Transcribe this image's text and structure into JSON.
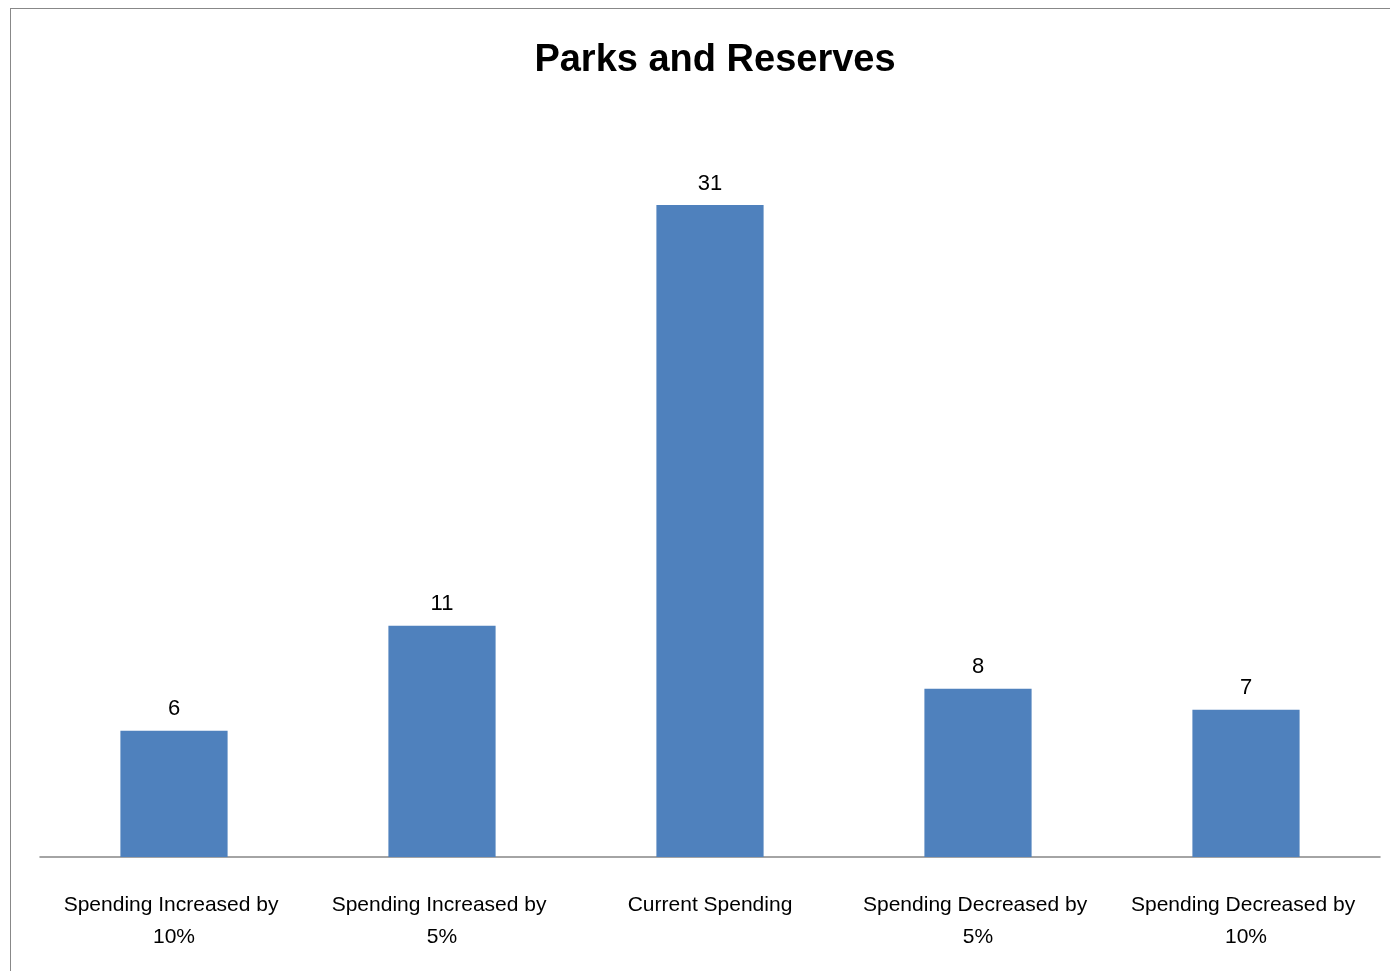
{
  "chart_data": {
    "type": "bar",
    "title": "Parks and Reserves",
    "categories": [
      "Spending Increased by 10%",
      "Spending Increased by 5%",
      "Current Spending",
      "Spending Decreased by 5%",
      "Spending Decreased by 10%"
    ],
    "values": [
      6,
      11,
      31,
      8,
      7
    ],
    "color": "#4f81bd",
    "data_labels": true
  }
}
